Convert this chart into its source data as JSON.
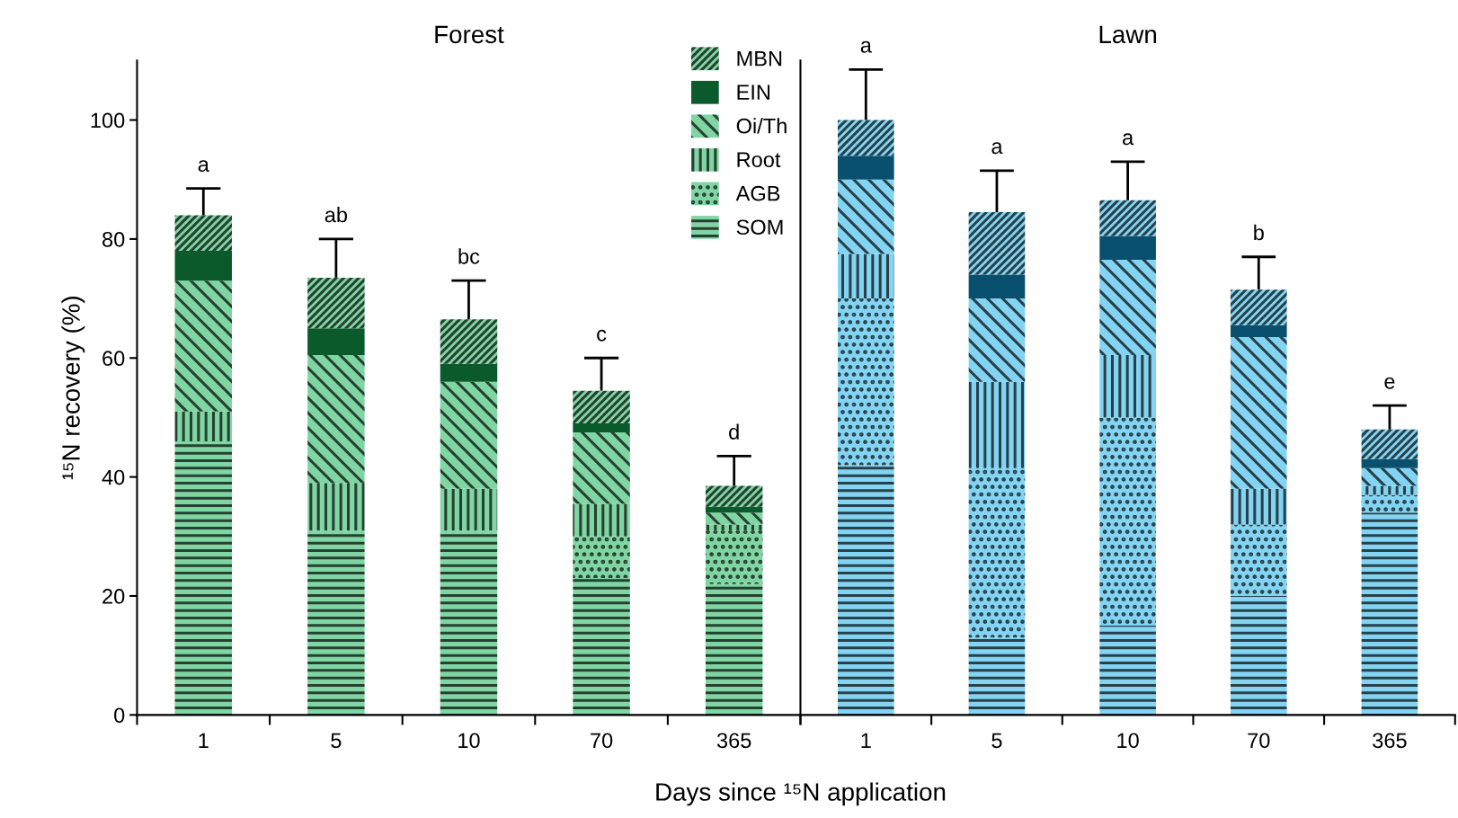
{
  "chart_data": [
    {
      "type": "bar",
      "stacked": true,
      "title": "Forest",
      "xlabel": "Days since ¹⁵N application",
      "ylabel": "¹⁵N recovery (%)",
      "categories": [
        "1",
        "5",
        "10",
        "70",
        "365"
      ],
      "ylim": [
        0,
        110
      ],
      "yticks": [
        0,
        20,
        40,
        60,
        80,
        100
      ],
      "legend": "top right",
      "grid": false,
      "series": [
        {
          "name": "SOM",
          "color": "#7fd6a2",
          "values": [
            46,
            31,
            31,
            23,
            22
          ]
        },
        {
          "name": "AGB",
          "color": "#7fd6a2",
          "values": [
            0,
            0,
            0,
            7,
            9
          ]
        },
        {
          "name": "Root",
          "color": "#7fd6a2",
          "values": [
            5,
            8,
            7,
            5.5,
            1
          ]
        },
        {
          "name": "Oi/Th",
          "color": "#7fd6a2",
          "values": [
            22,
            21.5,
            18,
            12,
            2
          ]
        },
        {
          "name": "EIN",
          "color": "#0b5a2c",
          "values": [
            5,
            4.5,
            3,
            1.5,
            1
          ]
        },
        {
          "name": "MBN",
          "color": "#7fd6a2",
          "values": [
            6,
            8.5,
            7.5,
            5.5,
            3.5
          ],
          "errors": [
            [
              84,
              88.5
            ],
            [
              73.5,
              80
            ],
            [
              66.5,
              73
            ],
            [
              54.5,
              60
            ],
            [
              38.5,
              43.5
            ]
          ]
        }
      ],
      "annotations": [
        {
          "text": "a",
          "x": "1",
          "y": 88.5
        },
        {
          "text": "ab",
          "x": "5",
          "y": 80
        },
        {
          "text": "bc",
          "x": "10",
          "y": 73
        },
        {
          "text": "c",
          "x": "70",
          "y": 60
        },
        {
          "text": "d",
          "x": "365",
          "y": 43.5
        }
      ]
    },
    {
      "type": "bar",
      "stacked": true,
      "title": "Lawn",
      "categories": [
        "1",
        "5",
        "10",
        "70",
        "365"
      ],
      "ylim": [
        0,
        110
      ],
      "tick_labels": "x",
      "grid": false,
      "series": [
        {
          "color": "#82d4f2",
          "values": [
            42,
            13,
            15,
            20,
            34
          ]
        },
        {
          "color": "#82d4f2",
          "values": [
            28,
            28.5,
            35,
            12,
            3
          ]
        },
        {
          "color": "#82d4f2",
          "values": [
            7.5,
            14.5,
            10.5,
            6,
            1.5
          ]
        },
        {
          "color": "#82d4f2",
          "values": [
            12.5,
            14,
            16,
            25.5,
            3
          ]
        },
        {
          "color": "#08506e",
          "values": [
            4,
            4,
            4,
            2,
            1.5
          ]
        },
        {
          "color": "#82d4f2",
          "values": [
            6,
            10.5,
            6,
            6,
            5
          ],
          "errors": [
            [
              100,
              108.5
            ],
            [
              84.5,
              91.5
            ],
            [
              86.5,
              93
            ],
            [
              71.5,
              77
            ],
            [
              48,
              52
            ]
          ]
        }
      ],
      "annotations": [
        {
          "text": "a",
          "x": "1",
          "y": 108.5
        },
        {
          "text": "a",
          "x": "5",
          "y": 91.5
        },
        {
          "text": "a",
          "x": "10",
          "y": 93
        },
        {
          "text": "b",
          "x": "70",
          "y": 77
        },
        {
          "text": "e",
          "x": "365",
          "y": 52
        }
      ]
    }
  ]
}
